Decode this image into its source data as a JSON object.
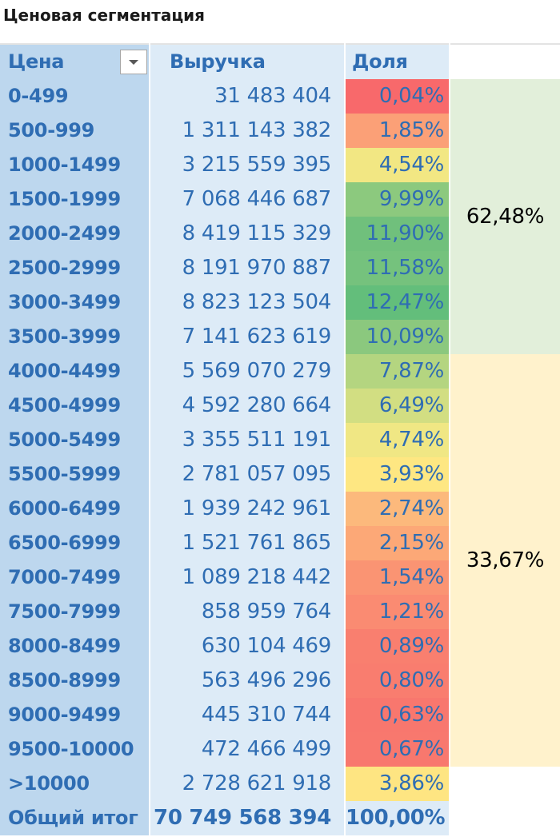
{
  "title": "Ценовая сегментация",
  "header": {
    "price": "Цена",
    "revenue": "Выручка",
    "share": "Доля"
  },
  "rows": [
    {
      "price": "0-499",
      "revenue": "31 483 404",
      "share": "0,04%",
      "color": "#f8696b"
    },
    {
      "price": "500-999",
      "revenue": "1 311 143 382",
      "share": "1,85%",
      "color": "#fba077"
    },
    {
      "price": "1000-1499",
      "revenue": "3 215 559 395",
      "share": "4,54%",
      "color": "#f2e783"
    },
    {
      "price": "1500-1999",
      "revenue": "7 068 446 687",
      "share": "9,99%",
      "color": "#8cc97e"
    },
    {
      "price": "2000-2499",
      "revenue": "8 419 115 329",
      "share": "11,90%",
      "color": "#70c07c"
    },
    {
      "price": "2500-2999",
      "revenue": "8 191 970 887",
      "share": "11,58%",
      "color": "#75c27d"
    },
    {
      "price": "3000-3499",
      "revenue": "8 823 123 504",
      "share": "12,47%",
      "color": "#63be7b"
    },
    {
      "price": "3500-3999",
      "revenue": "7 141 623 619",
      "share": "10,09%",
      "color": "#8bc87e"
    },
    {
      "price": "4000-4499",
      "revenue": "5 569 070 279",
      "share": "7,87%",
      "color": "#b4d580"
    },
    {
      "price": "4500-4999",
      "revenue": "4 592 280 664",
      "share": "6,49%",
      "color": "#d2de82"
    },
    {
      "price": "5000-5499",
      "revenue": "3 355 511 191",
      "share": "4,74%",
      "color": "#f0e784"
    },
    {
      "price": "5500-5999",
      "revenue": "2 781 057 095",
      "share": "3,93%",
      "color": "#fee782"
    },
    {
      "price": "6000-6499",
      "revenue": "1 939 242 961",
      "share": "2,74%",
      "color": "#fcb97c"
    },
    {
      "price": "6500-6999",
      "revenue": "1 521 761 865",
      "share": "2,15%",
      "color": "#fca877"
    },
    {
      "price": "7000-7499",
      "revenue": "1 089 218 442",
      "share": "1,54%",
      "color": "#fa9473"
    },
    {
      "price": "7500-7999",
      "revenue": "858 959 764",
      "share": "1,21%",
      "color": "#fa8b72"
    },
    {
      "price": "8000-8499",
      "revenue": "630 104 469",
      "share": "0,89%",
      "color": "#f97f6f"
    },
    {
      "price": "8500-8999",
      "revenue": "563 496 296",
      "share": "0,80%",
      "color": "#f97d6f"
    },
    {
      "price": "9000-9499",
      "revenue": "445 310 744",
      "share": "0,63%",
      "color": "#f8776e"
    },
    {
      "price": "9500-10000",
      "revenue": "472 466 499",
      "share": "0,67%",
      "color": "#f8786e"
    },
    {
      "price": ">10000",
      "revenue": "2 728 621 918",
      "share": "3,86%",
      "color": "#fee582"
    }
  ],
  "total": {
    "price": "Общий итог",
    "revenue": "70 749 568 394",
    "share": "100,00%"
  },
  "groups": [
    {
      "label": "62,48%",
      "rows": 8,
      "color": "#e2efda"
    },
    {
      "label": "33,67%",
      "rows": 12,
      "color": "#fff2cc"
    }
  ],
  "colors": {
    "text_blue": "#2f6db3",
    "price_fill": "#bdd7ee",
    "revenue_fill": "#ddebf7"
  },
  "icons": {
    "filter": "dropdown-arrow-icon"
  }
}
